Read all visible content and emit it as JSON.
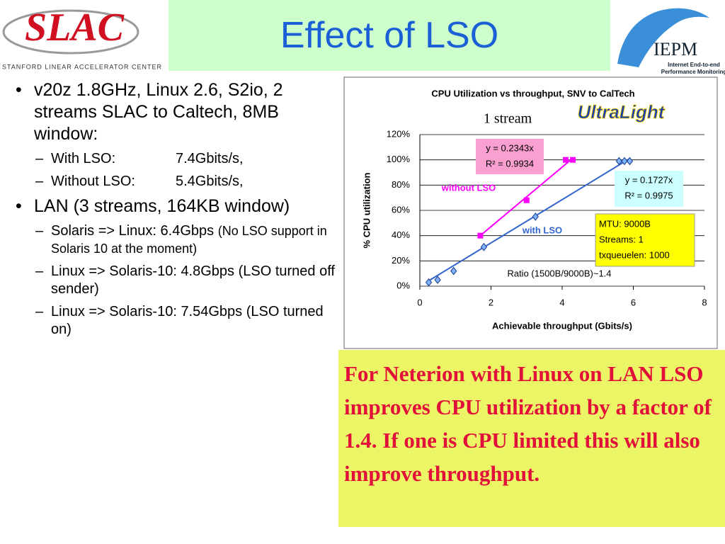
{
  "header": {
    "title": "Effect of LSO",
    "logo_left": "SLAC",
    "logo_left_caption": "Stanford Linear Accelerator Center",
    "logo_right": "IEPM",
    "logo_right_caption": [
      "Internet End-to-end",
      "Performance Monitoring"
    ]
  },
  "bullets": [
    {
      "text": "v20z 1.8GHz, Linux 2.6, S2io, 2 streams SLAC to Caltech, 8MB window:",
      "sub": [
        {
          "label": "With LSO:",
          "text": "7.4Gbits/s,"
        },
        {
          "label": "Without LSO:",
          "text": "5.4Gbits/s,"
        }
      ]
    },
    {
      "text": "LAN (3 streams, 164KB window)",
      "sub": [
        {
          "text": "Solaris => Linux: 6.4Gbps",
          "note": "(No LSO support in Solaris 10 at the moment)"
        },
        {
          "text": "Linux => Solaris-10: 4.8Gbps (LSO turned off sender)"
        },
        {
          "text": "Linux => Solaris-10: 7.54Gbps (LSO turned on)"
        }
      ]
    }
  ],
  "callout": "For Neterion with Linux on LAN LSO improves CPU utilization by a factor of 1.4. If one is CPU limited this will also improve throughput.",
  "chart_data": {
    "type": "scatter",
    "title": "CPU Utilization vs throughput, SNV to CalTech",
    "subtitle": "1 stream",
    "logo": "UltraLight",
    "xlabel": "Achievable throughput (Gbits/s)",
    "ylabel": "% CPU utilization",
    "xlim": [
      0,
      8
    ],
    "xticks": [
      0,
      2,
      4,
      6,
      8
    ],
    "ylim": [
      0,
      120
    ],
    "yticks": [
      {
        "value": 0,
        "label": "0%"
      },
      {
        "value": 20,
        "label": "20%"
      },
      {
        "value": 40,
        "label": "40%"
      },
      {
        "value": 60,
        "label": "60%"
      },
      {
        "value": 80,
        "label": "80%"
      },
      {
        "value": 100,
        "label": "100%"
      },
      {
        "value": 120,
        "label": "120%"
      }
    ],
    "trendline": true,
    "series": [
      {
        "name": "without  LSO",
        "color": "#ff00ff",
        "marker": "square",
        "x": [
          1.7,
          3.0,
          4.1,
          4.3
        ],
        "values": [
          40,
          68,
          100,
          100
        ],
        "equation": "y = 0.2343x",
        "r2": "R² = 0.9934"
      },
      {
        "name": "with LSO",
        "color": "#3366cc",
        "marker": "diamond",
        "x": [
          0.25,
          0.5,
          0.95,
          1.8,
          3.25,
          5.6,
          5.75,
          5.9
        ],
        "values": [
          3,
          5,
          12,
          31,
          55,
          99,
          99,
          99
        ],
        "equation": "y = 0.1727x",
        "r2": "R² = 0.9975"
      }
    ],
    "notes": [
      "MTU: 9000B",
      "Streams: 1",
      "txqueuelen: 1000"
    ],
    "annotation": "Ratio (1500B/9000B)~1.4"
  }
}
